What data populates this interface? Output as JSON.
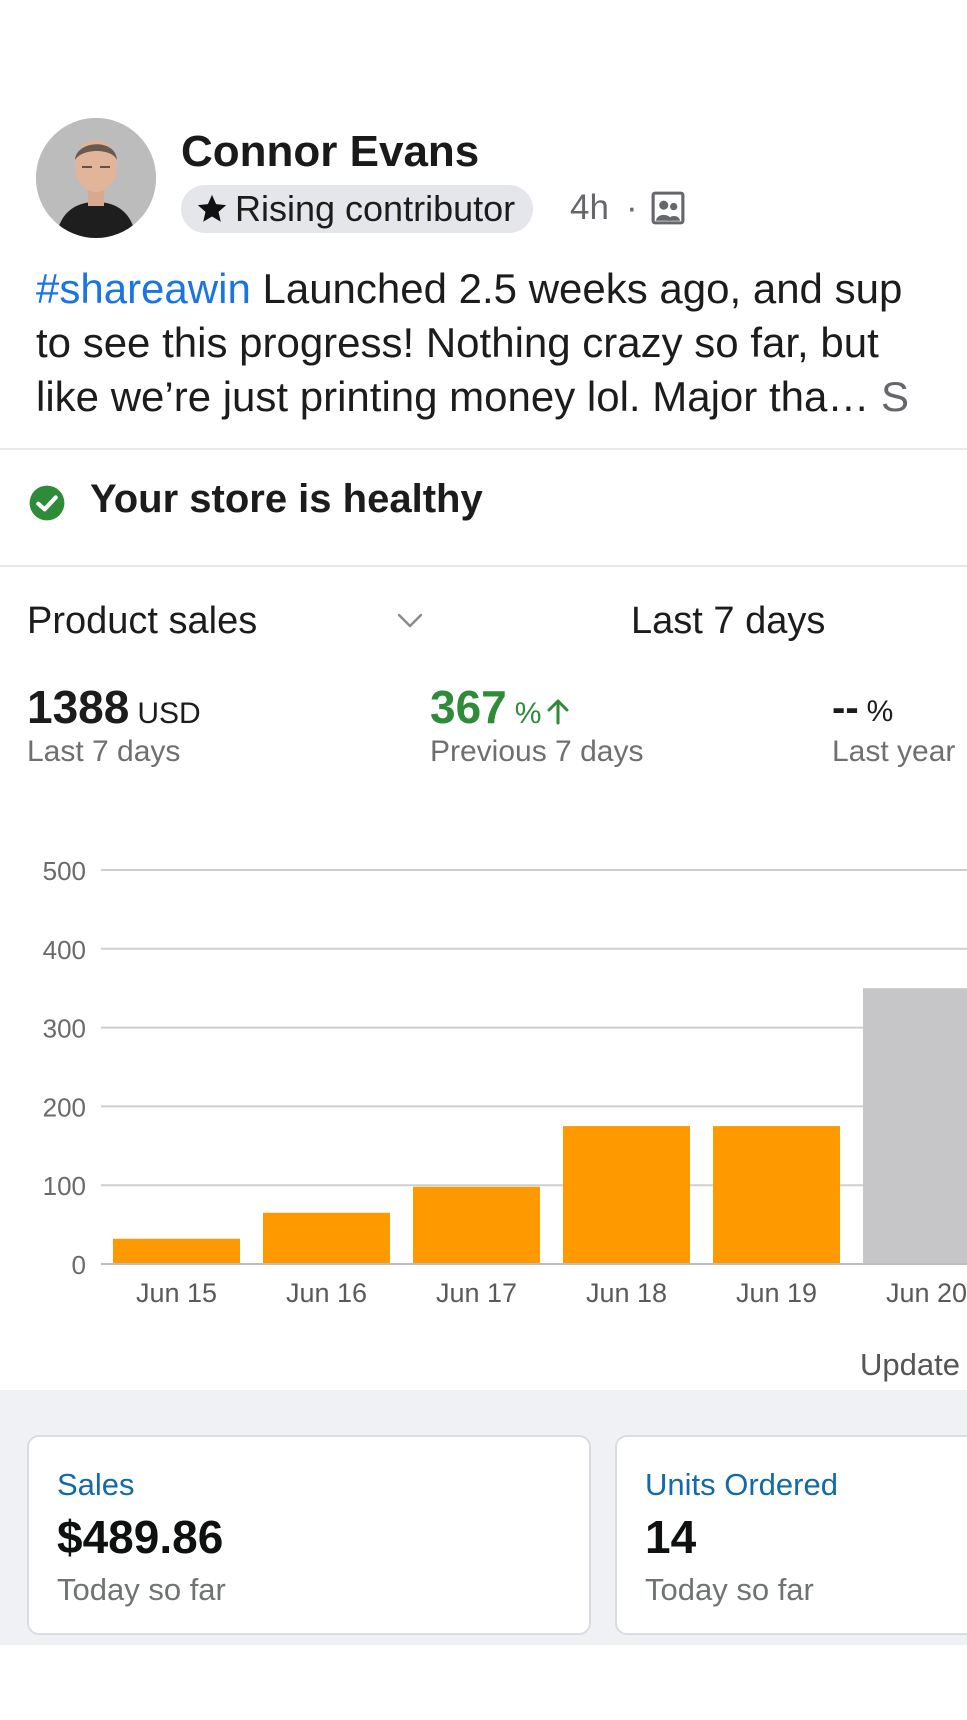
{
  "post": {
    "author_name": "Connor Evans",
    "badge_label": "Rising contributor",
    "time": "4h",
    "separator": "·",
    "audience_icon": "group-icon",
    "hashtag": "#shareawin",
    "text_line1": " Launched 2.5 weeks ago, and sup",
    "text_line2": "to see this progress! Nothing crazy so far, but",
    "text_line3": "like we’re just printing money lol. Major tha…",
    "text_line3_tail": " S"
  },
  "store": {
    "health_text": "Your store is healthy",
    "health_icon": "check-circle-icon",
    "metric_label": "Product sales",
    "period_label": "Last 7 days",
    "stats": [
      {
        "value": "1388",
        "unit": "USD",
        "caption": "Last 7 days",
        "color": "#1c1c1c"
      },
      {
        "value": "367",
        "unit": "%",
        "caption": "Previous 7 days",
        "color": "#2e8b3a"
      },
      {
        "value": "--",
        "unit": "%",
        "caption": "Last year",
        "color": "#1c1c1c"
      }
    ],
    "updated_label": "Update"
  },
  "chart_data": {
    "type": "bar",
    "categories": [
      "Jun 15",
      "Jun 16",
      "Jun 17",
      "Jun 18",
      "Jun 19",
      "Jun 20"
    ],
    "values": [
      32,
      65,
      98,
      175,
      175,
      350
    ],
    "bar_colors": [
      "#fe9900",
      "#fe9900",
      "#fe9900",
      "#fe9900",
      "#fe9900",
      "#c6c6c9"
    ],
    "yticks": [
      0,
      100,
      200,
      300,
      400,
      500
    ],
    "ylim": [
      0,
      500
    ],
    "grid": true,
    "title": "",
    "xlabel": "",
    "ylabel": ""
  },
  "cards": [
    {
      "label": "Sales",
      "value": "$489.86",
      "caption": "Today so far"
    },
    {
      "label": "Units Ordered",
      "value": "14",
      "caption": "Today so far"
    }
  ],
  "colors": {
    "accent_link": "#1b74e4",
    "healthy_green": "#2e8b3a",
    "bar_orange": "#fe9900",
    "bar_gray": "#c6c6c9",
    "card_label_blue": "#126aa8"
  }
}
